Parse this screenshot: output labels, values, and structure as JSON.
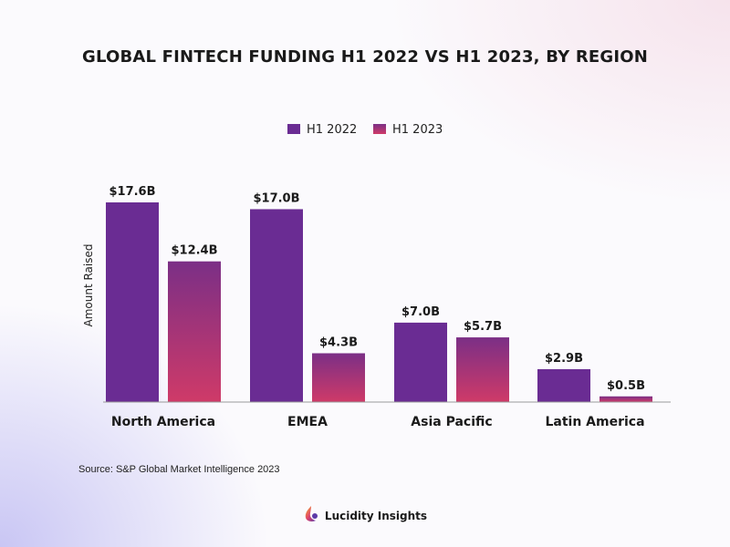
{
  "chart_data": {
    "type": "bar",
    "title": "GLOBAL FINTECH FUNDING H1 2022 VS H1 2023, BY REGION",
    "xlabel": "",
    "ylabel": "Amount Raised",
    "categories": [
      "North America",
      "EMEA",
      "Asia Pacific",
      "Latin America"
    ],
    "series": [
      {
        "name": "H1 2022",
        "values": [
          17.6,
          17.0,
          7.0,
          2.9
        ],
        "labels": [
          "$17.6B",
          "$17.0B",
          "$7.0B",
          "$2.9B"
        ],
        "color": "#6a2c93"
      },
      {
        "name": "H1 2023",
        "values": [
          12.4,
          4.3,
          5.7,
          0.5
        ],
        "labels": [
          "$12.4B",
          "$4.3B",
          "$5.7B",
          "$0.5B"
        ],
        "color": "#cf3a68",
        "color_top": "#7b2f86"
      }
    ],
    "ylim": [
      0,
      17.6
    ],
    "grid": false,
    "legend_position": "top-center"
  },
  "source": "Source: S&P Global Market Intelligence 2023",
  "brand": {
    "name": "Lucidity Insights",
    "icon": "lucidity-logo-icon"
  }
}
